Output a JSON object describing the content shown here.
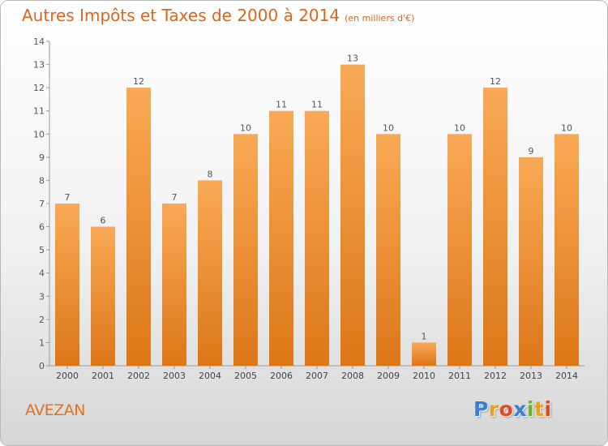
{
  "title": "Autres Impôts et Taxes de 2000 à 2014",
  "subtitle": "(en milliers d'€)",
  "town": "AVEZAN",
  "logo": {
    "letters": [
      "P",
      "r",
      "o",
      "x",
      "i",
      "t",
      "i"
    ],
    "colors": [
      "#3a7fd5",
      "#e8a21e",
      "#e24a1e",
      "#3a7fd5",
      "#6ab22e",
      "#e8a21e",
      "#e24a1e"
    ]
  },
  "colors": {
    "bar_top": "#f9a955",
    "bar_bottom": "#dc7718",
    "accent": "#d9661c"
  },
  "chart_data": {
    "type": "bar",
    "categories": [
      "2000",
      "2001",
      "2002",
      "2003",
      "2004",
      "2005",
      "2006",
      "2007",
      "2008",
      "2009",
      "2010",
      "2011",
      "2012",
      "2013",
      "2014"
    ],
    "values": [
      7,
      6,
      12,
      7,
      8,
      10,
      11,
      11,
      13,
      10,
      1,
      10,
      12,
      9,
      10
    ],
    "ylim": [
      0,
      14
    ],
    "yticks": [
      0,
      1,
      2,
      3,
      4,
      5,
      6,
      7,
      8,
      9,
      10,
      11,
      12,
      13,
      14
    ],
    "grid": false,
    "legend": "none"
  }
}
